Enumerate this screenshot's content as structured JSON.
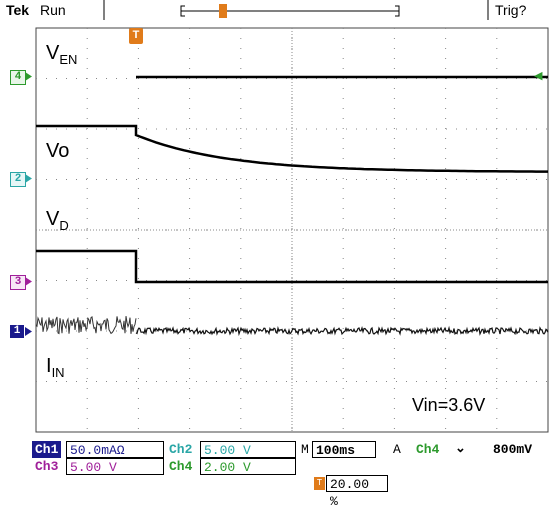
{
  "header": {
    "brand": "Tek",
    "state": "Run",
    "trigger_status": "Trig?"
  },
  "signals": {
    "ven": {
      "main": "V",
      "sub": "EN"
    },
    "vo": {
      "main": "Vo",
      "sub": ""
    },
    "vd": {
      "main": "V",
      "sub": "D"
    },
    "iin": {
      "main": "I",
      "sub": "IN"
    }
  },
  "markers": {
    "ch4": "4",
    "ch2": "2",
    "ch3": "3",
    "ch1": "1",
    "trigger": "T"
  },
  "annotation": "Vin=3.6V",
  "colors": {
    "ch1": "#1a1a8c",
    "ch2": "#2aa6a6",
    "ch3": "#a0209a",
    "ch4": "#2d9a2d",
    "trigger": "#e07b1a",
    "grid": "#888888"
  },
  "status_bar": {
    "ch1_label": "Ch1",
    "ch1_scale": "50.0mAΩ",
    "ch2_label": "Ch2",
    "ch2_scale": "5.00 V",
    "ch3_label": "Ch3",
    "ch3_scale": "5.00 V",
    "ch4_label": "Ch4",
    "ch4_scale": "2.00 V",
    "timebase_prefix": "M",
    "timebase": "100ms",
    "trigger_mode": "A",
    "trigger_source": "Ch4",
    "trigger_slope": "⌄",
    "trigger_level": "800mV",
    "trigger_position": "20.00 %"
  }
}
